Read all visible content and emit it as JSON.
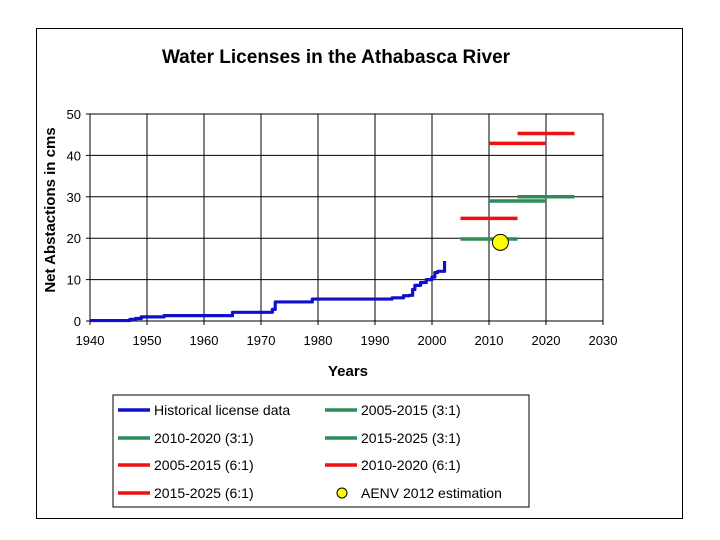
{
  "chart_data": {
    "type": "line",
    "title": "Water Licenses in the Athabasca River",
    "xlabel": "Years",
    "ylabel": "Net Abstactions in cms",
    "xlim": [
      1940,
      2030
    ],
    "ylim": [
      0,
      50
    ],
    "xticks": [
      1940,
      1950,
      1960,
      1970,
      1980,
      1990,
      2000,
      2010,
      2020,
      2030
    ],
    "yticks": [
      0,
      10,
      20,
      30,
      40,
      50
    ],
    "grid": true,
    "legend_position": "bottom",
    "colors": {
      "historical": "#1010cc",
      "green": "#2e8b57",
      "red": "#ee1111",
      "marker": "#ffff00"
    },
    "series": [
      {
        "name": "Historical license data",
        "color": "#1010cc",
        "kind": "step",
        "points": [
          [
            1940,
            0.1
          ],
          [
            1946,
            0.1
          ],
          [
            1947,
            0.4
          ],
          [
            1948,
            0.6
          ],
          [
            1949,
            1.0
          ],
          [
            1952,
            1.0
          ],
          [
            1953,
            1.3
          ],
          [
            1964,
            1.3
          ],
          [
            1965,
            2.1
          ],
          [
            1971,
            2.1
          ],
          [
            1972,
            2.8
          ],
          [
            1972.5,
            4.6
          ],
          [
            1978,
            4.6
          ],
          [
            1979,
            5.3
          ],
          [
            1990,
            5.3
          ],
          [
            1993,
            5.6
          ],
          [
            1995,
            6.1
          ],
          [
            1996,
            6.2
          ],
          [
            1996.6,
            7.6
          ],
          [
            1997,
            8.6
          ],
          [
            1998,
            9.3
          ],
          [
            1999,
            10.0
          ],
          [
            2000,
            10.6
          ],
          [
            2000.5,
            11.7
          ],
          [
            2001,
            12.0
          ],
          [
            2002,
            12.0
          ],
          [
            2002.2,
            14.5
          ]
        ]
      },
      {
        "name": "2005-2015 (3:1)",
        "color": "#2e8b57",
        "x": [
          2005,
          2015
        ],
        "y": 19.8
      },
      {
        "name": "2010-2020 (3:1)",
        "color": "#2e8b57",
        "x": [
          2010,
          2020
        ],
        "y": 29.0
      },
      {
        "name": "2015-2025 (3:1)",
        "color": "#2e8b57",
        "x": [
          2015,
          2025
        ],
        "y": 30.0
      },
      {
        "name": "2005-2015 (6:1)",
        "color": "#ee1111",
        "x": [
          2005,
          2015
        ],
        "y": 24.8
      },
      {
        "name": "2010-2020 (6:1)",
        "color": "#ee1111",
        "x": [
          2010,
          2020
        ],
        "y": 42.9
      },
      {
        "name": "2015-2025 (6:1)",
        "color": "#ee1111",
        "x": [
          2015,
          2025
        ],
        "y": 45.3
      },
      {
        "name": "AENV 2012 estimation",
        "color": "#ffff00",
        "kind": "marker",
        "x": 2012,
        "y": 19.0
      }
    ],
    "legend": [
      "Historical license data",
      "2005-2015 (3:1)",
      "2010-2020 (3:1)",
      "2015-2025 (3:1)",
      "2005-2015 (6:1)",
      "2010-2020 (6:1)",
      "2015-2025 (6:1)",
      "AENV 2012 estimation"
    ]
  }
}
